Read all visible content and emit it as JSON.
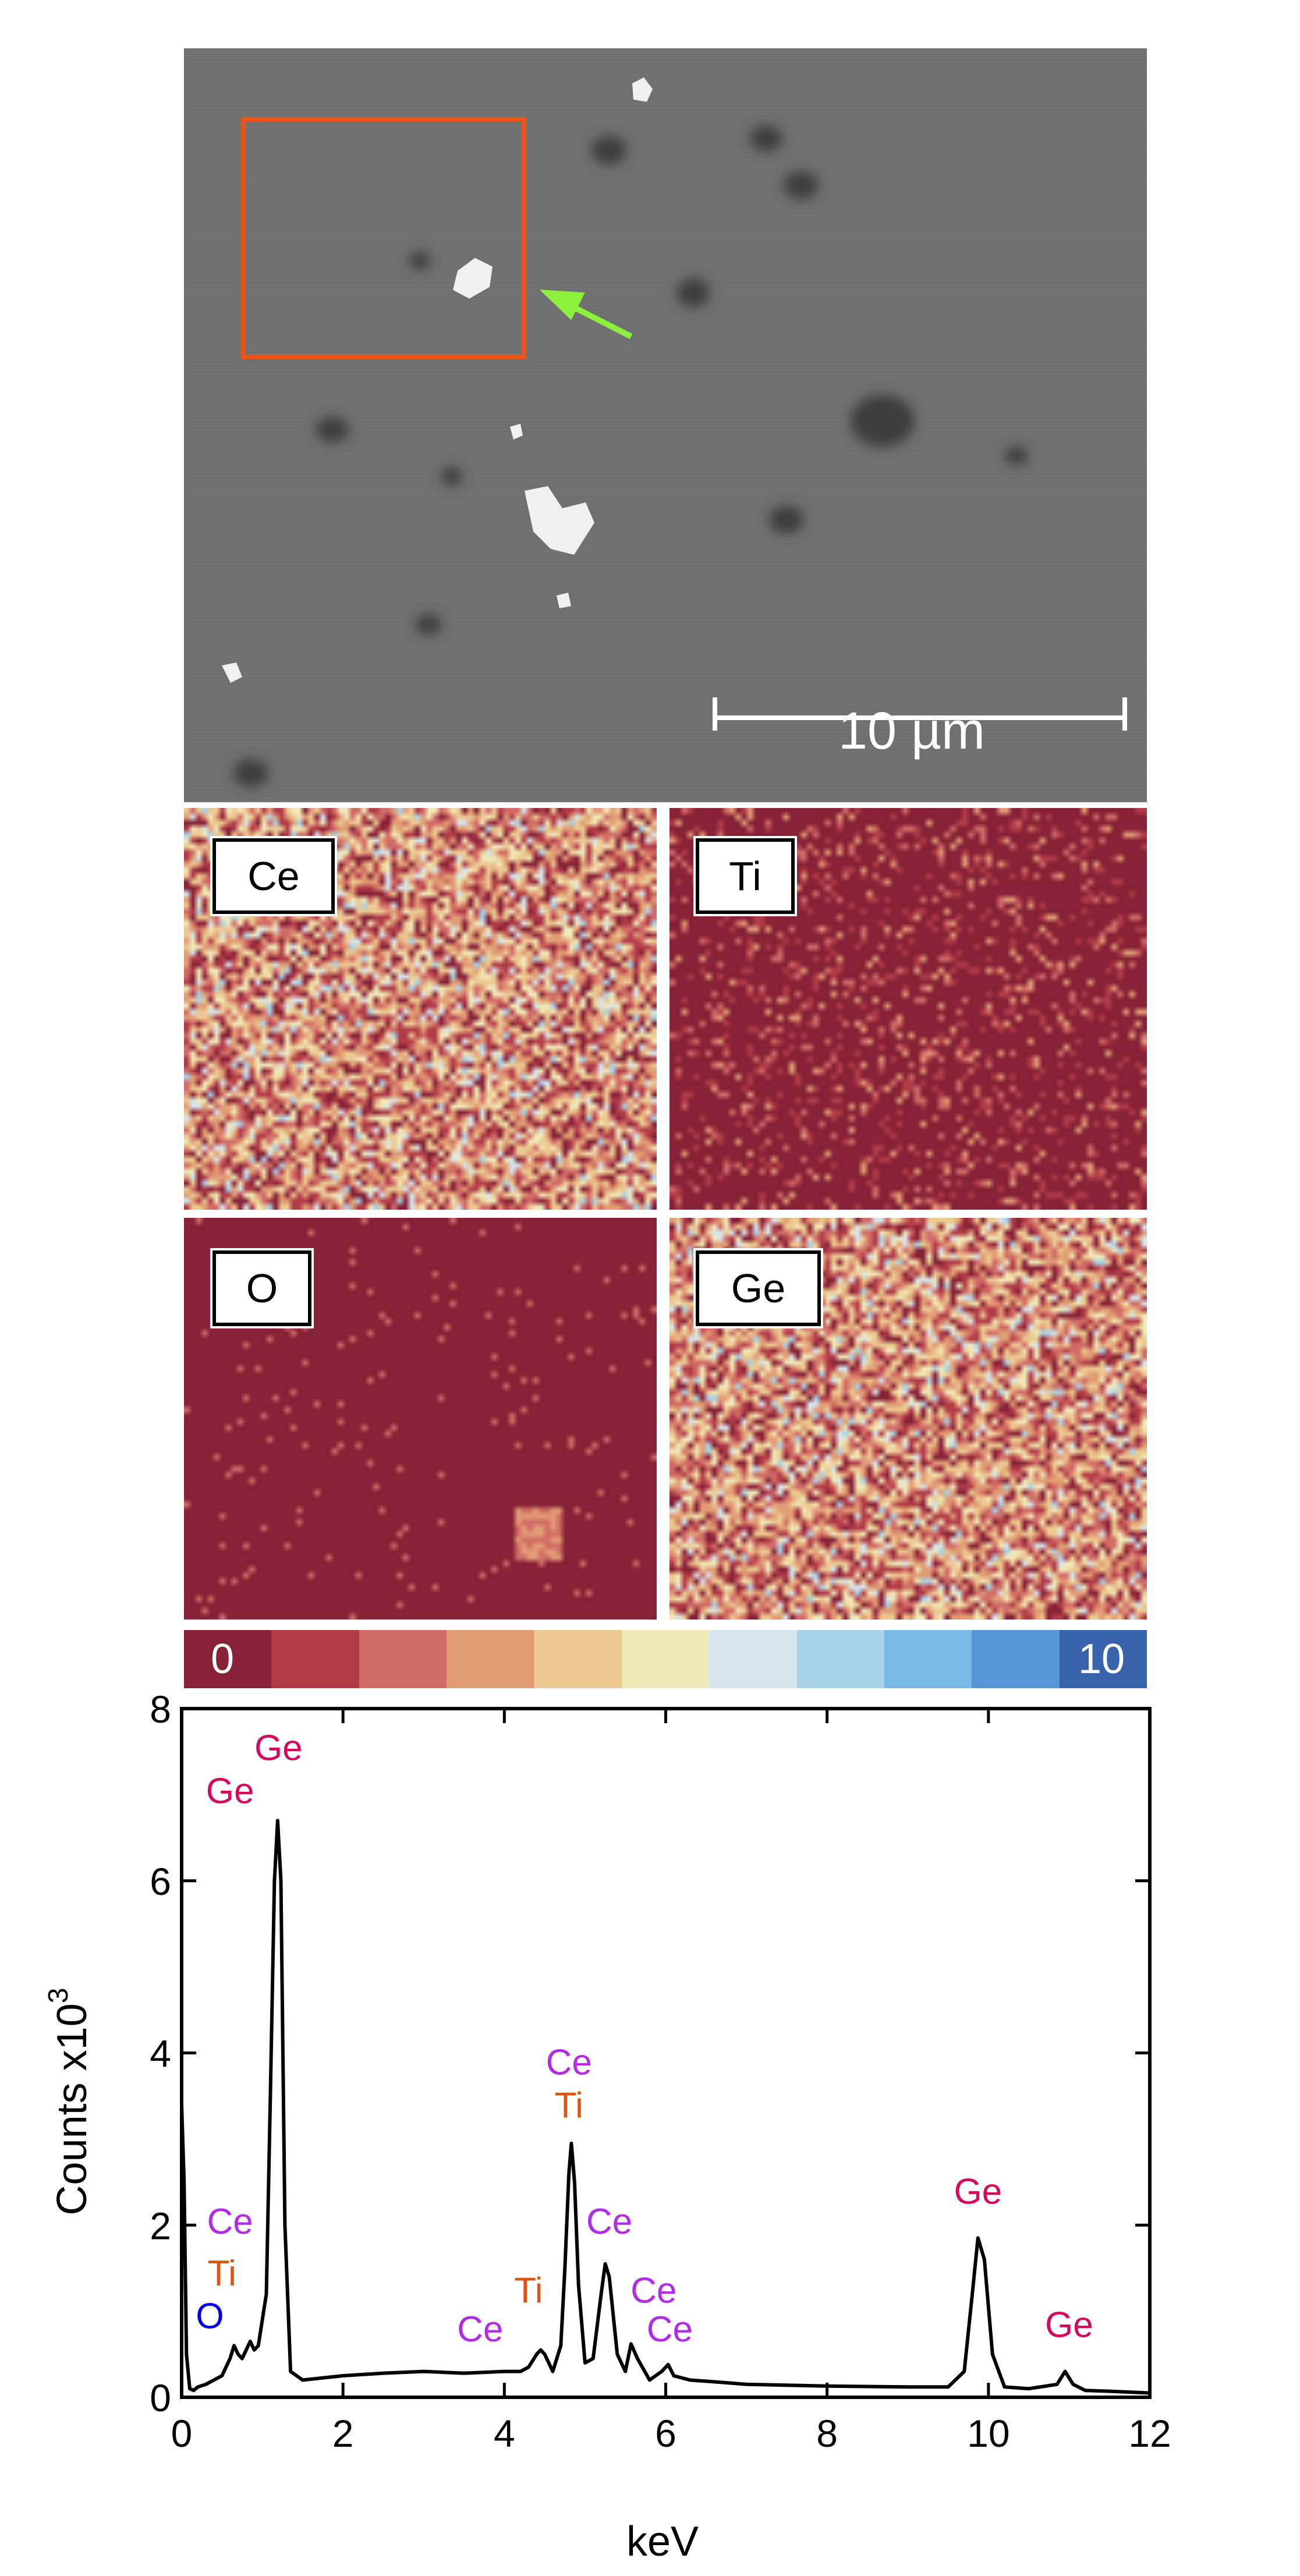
{
  "sem_image": {
    "scale_bar_label": "10 µm",
    "colors": {
      "background": "#6e6e6e",
      "roi_box": "#e8541a",
      "arrow": "#8cf03c",
      "scale_bar": "#ffffff"
    }
  },
  "elemental_maps": [
    {
      "element": "Ce",
      "label": "Ce"
    },
    {
      "element": "Ti",
      "label": "Ti"
    },
    {
      "element": "O",
      "label": "O"
    },
    {
      "element": "Ge",
      "label": "Ge"
    }
  ],
  "colorbar": {
    "min_label": "0",
    "max_label": "10",
    "colors": [
      "#862136",
      "#b13c48",
      "#d16b66",
      "#e19c74",
      "#ecc990",
      "#f1e9b8",
      "#d6e5ec",
      "#a8d2e8",
      "#79b9e6",
      "#5596d6",
      "#3a63ad"
    ]
  },
  "chart_data": {
    "type": "line",
    "title": "",
    "xlabel": "keV",
    "ylabel": "Counts x10",
    "ylabel_exponent": "3",
    "xlim": [
      0,
      12
    ],
    "ylim": [
      0,
      8
    ],
    "xticks": [
      0,
      2,
      4,
      6,
      8,
      10,
      12
    ],
    "yticks": [
      0,
      2,
      4,
      6,
      8
    ],
    "x": [
      0.0,
      0.03,
      0.06,
      0.1,
      0.15,
      0.2,
      0.3,
      0.4,
      0.5,
      0.6,
      0.65,
      0.7,
      0.75,
      0.8,
      0.85,
      0.9,
      0.95,
      1.0,
      1.05,
      1.1,
      1.15,
      1.19,
      1.23,
      1.28,
      1.35,
      1.5,
      2.0,
      2.5,
      3.0,
      3.5,
      4.0,
      4.2,
      4.3,
      4.4,
      4.45,
      4.5,
      4.55,
      4.6,
      4.7,
      4.75,
      4.8,
      4.83,
      4.87,
      4.92,
      5.0,
      5.1,
      5.2,
      5.25,
      5.3,
      5.4,
      5.5,
      5.57,
      5.65,
      5.8,
      5.95,
      6.03,
      6.1,
      6.3,
      6.6,
      7.0,
      8.0,
      9.0,
      9.5,
      9.7,
      9.8,
      9.87,
      9.95,
      10.05,
      10.2,
      10.5,
      10.85,
      10.95,
      11.05,
      11.2,
      11.5,
      12.0
    ],
    "y": [
      3.4,
      2.5,
      0.5,
      0.1,
      0.08,
      0.12,
      0.15,
      0.2,
      0.25,
      0.45,
      0.6,
      0.5,
      0.45,
      0.55,
      0.65,
      0.55,
      0.6,
      0.9,
      1.2,
      3.5,
      6.0,
      6.7,
      6.0,
      2.0,
      0.3,
      0.2,
      0.25,
      0.28,
      0.3,
      0.28,
      0.3,
      0.3,
      0.35,
      0.5,
      0.55,
      0.5,
      0.4,
      0.3,
      0.6,
      1.5,
      2.6,
      2.95,
      2.5,
      1.3,
      0.4,
      0.45,
      1.2,
      1.55,
      1.4,
      0.5,
      0.3,
      0.62,
      0.45,
      0.2,
      0.3,
      0.38,
      0.25,
      0.2,
      0.18,
      0.15,
      0.13,
      0.12,
      0.12,
      0.3,
      1.2,
      1.85,
      1.6,
      0.5,
      0.12,
      0.1,
      0.15,
      0.3,
      0.15,
      0.08,
      0.07,
      0.05
    ],
    "annotations": [
      {
        "text": "Ge",
        "x": 1.2,
        "y": 7.4,
        "color": "#d6095d"
      },
      {
        "text": "Ge",
        "x": 0.6,
        "y": 6.9,
        "color": "#d6095d"
      },
      {
        "text": "Ce",
        "x": 0.6,
        "y": 1.9,
        "color": "#b22ce8"
      },
      {
        "text": "Ti",
        "x": 0.5,
        "y": 1.3,
        "color": "#e0540f"
      },
      {
        "text": "O",
        "x": 0.35,
        "y": 0.8,
        "color": "#0000e6"
      },
      {
        "text": "Ti",
        "x": 4.3,
        "y": 1.1,
        "color": "#e0540f"
      },
      {
        "text": "Ce",
        "x": 3.7,
        "y": 0.65,
        "color": "#b22ce8"
      },
      {
        "text": "Ce",
        "x": 4.8,
        "y": 3.75,
        "color": "#b22ce8"
      },
      {
        "text": "Ti",
        "x": 4.8,
        "y": 3.25,
        "color": "#e0540f"
      },
      {
        "text": "Ce",
        "x": 5.3,
        "y": 1.9,
        "color": "#b22ce8"
      },
      {
        "text": "Ce",
        "x": 5.85,
        "y": 1.1,
        "color": "#b22ce8"
      },
      {
        "text": "Ce",
        "x": 6.05,
        "y": 0.65,
        "color": "#b22ce8"
      },
      {
        "text": "Ge",
        "x": 9.87,
        "y": 2.25,
        "color": "#d6095d"
      },
      {
        "text": "Ge",
        "x": 11.0,
        "y": 0.7,
        "color": "#d6095d"
      }
    ],
    "grid": false,
    "legend": "none"
  }
}
